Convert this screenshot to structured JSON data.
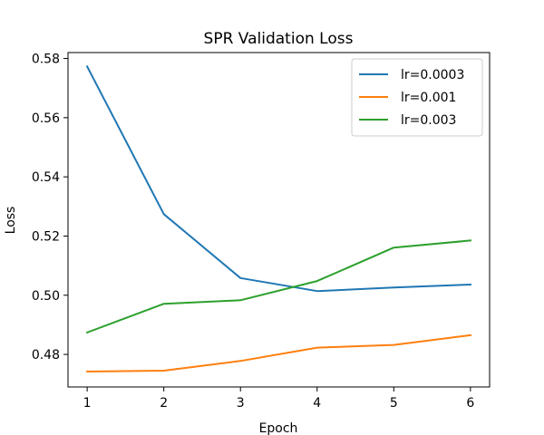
{
  "chart_data": {
    "type": "line",
    "title": "SPR Validation Loss",
    "xlabel": "Epoch",
    "ylabel": "Loss",
    "x": [
      1,
      2,
      3,
      4,
      5,
      6
    ],
    "xticks": [
      "1",
      "2",
      "3",
      "4",
      "5",
      "6"
    ],
    "yticks": [
      "0.48",
      "0.50",
      "0.52",
      "0.54",
      "0.56",
      "0.58"
    ],
    "xlim": [
      0.75,
      6.25
    ],
    "ylim": [
      0.469,
      0.582
    ],
    "grid": false,
    "legend_position": "top-right",
    "series": [
      {
        "name": "lr=0.0003",
        "color": "#1f77b4",
        "values": [
          0.5773,
          0.5274,
          0.5058,
          0.5014,
          0.5026,
          0.5036
        ]
      },
      {
        "name": "lr=0.001",
        "color": "#ff7f0e",
        "values": [
          0.4742,
          0.4745,
          0.4778,
          0.4823,
          0.4832,
          0.4865
        ]
      },
      {
        "name": "lr=0.003",
        "color": "#2ca02c",
        "values": [
          0.4874,
          0.4971,
          0.4983,
          0.5048,
          0.5161,
          0.5185
        ]
      }
    ]
  }
}
